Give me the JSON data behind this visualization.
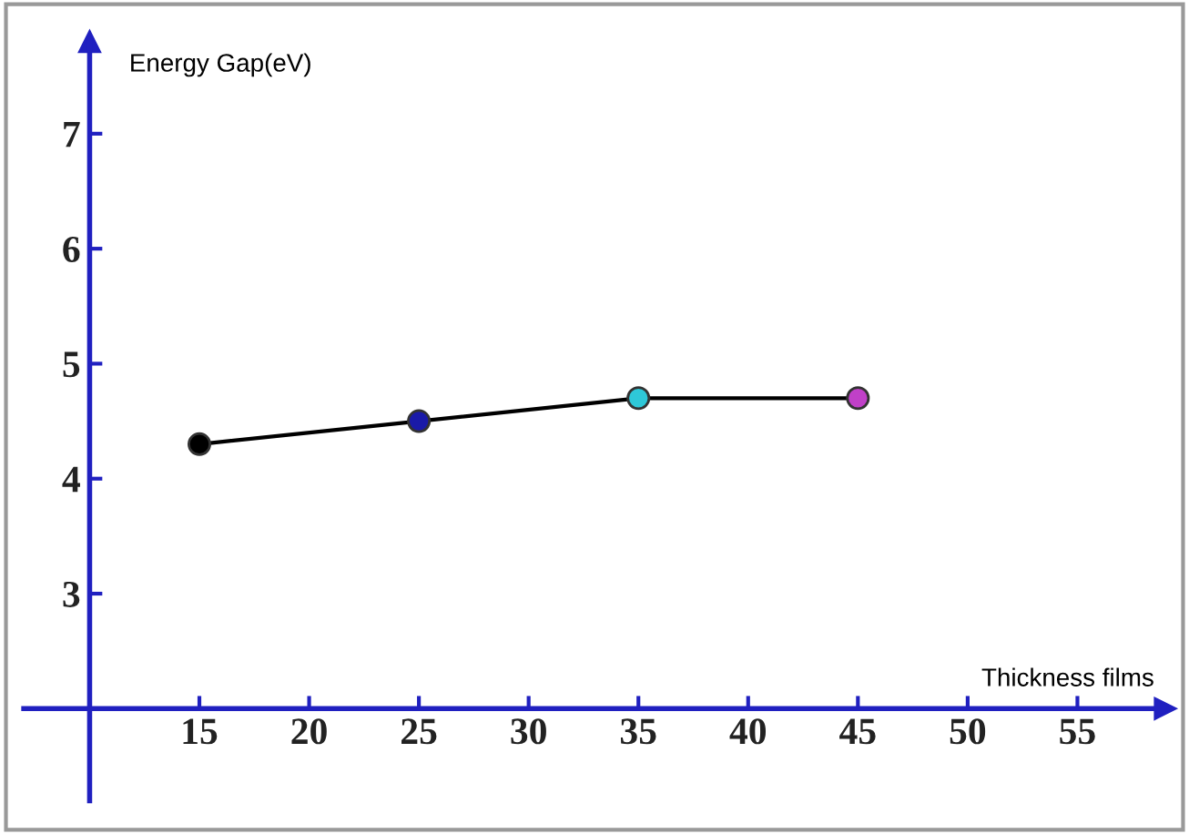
{
  "chart_data": {
    "type": "line",
    "xlabel": "Thickness films",
    "ylabel": "Energy Gap(eV)",
    "x": [
      15,
      25,
      35,
      45
    ],
    "series": [
      {
        "color": "#000000",
        "values": [
          4.3,
          4.5,
          4.7,
          4.7
        ],
        "colors": [
          "#000000",
          "#1a1aa8",
          "#2ec8d8",
          "#c040c8"
        ]
      }
    ],
    "xlim": [
      7,
      59
    ],
    "ylim": [
      1.2,
      7.8
    ],
    "xticks": [
      {
        "value": 10,
        "label": null
      },
      15,
      20,
      25,
      30,
      35,
      40,
      45,
      50,
      55
    ],
    "yticks": [
      {
        "value": 2,
        "label": null
      },
      3,
      4,
      5,
      6,
      7
    ],
    "marker": "circle",
    "line_style": "solid"
  }
}
